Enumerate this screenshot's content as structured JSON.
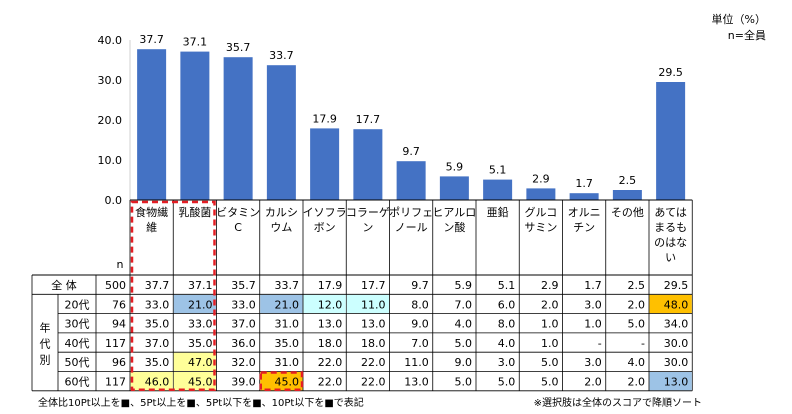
{
  "unit_label": "単位（%）",
  "n_label": "n=全員",
  "footer_left": "全体比10Pt以上を■、5Pt以上を■、5Pt以下を■、10Pt以下を■で表記",
  "footer_right": "※選択肢は全体のスコアで降順ソート",
  "table": {
    "n_header": "n",
    "group_label": "年代別",
    "total_row_label": "全 体"
  },
  "colors": {
    "bar": "#4472C4",
    "plus10": "#FFC000",
    "plus5": "#FFFF99",
    "minus5": "#CCFFFF",
    "minus10": "#9DC3E6",
    "highlight_box": "#E31E24"
  },
  "chart_data": {
    "type": "bar",
    "categories": [
      [
        "食物繊",
        "維"
      ],
      [
        "乳酸菌"
      ],
      [
        "ビタミン",
        "C"
      ],
      [
        "カルシ",
        "ウム"
      ],
      [
        "イソフラ",
        "ボン"
      ],
      [
        "コラーゲ",
        "ン"
      ],
      [
        "ポリフェ",
        "ノール"
      ],
      [
        "ヒアルロ",
        "ン酸"
      ],
      [
        "亜鉛"
      ],
      [
        "グルコ",
        "サミン"
      ],
      [
        "オルニ",
        "チン"
      ],
      [
        "その他"
      ],
      [
        "あては",
        "まるも",
        "のはな",
        "い"
      ]
    ],
    "values": [
      37.7,
      37.1,
      35.7,
      33.7,
      17.9,
      17.7,
      9.7,
      5.9,
      5.1,
      2.9,
      1.7,
      2.5,
      29.5
    ],
    "value_labels": [
      "37.7",
      "37.1",
      "35.7",
      "33.7",
      "17.9",
      "17.7",
      "9.7",
      "5.9",
      "5.1",
      "2.9",
      "1.7",
      "2.5",
      "29.5"
    ],
    "ylim": [
      0,
      40
    ],
    "yticks": [
      "0.0",
      "10.0",
      "20.0",
      "30.0",
      "40.0"
    ],
    "table_rows": [
      {
        "label": "全 体",
        "n": "500",
        "values": [
          "37.7",
          "37.1",
          "35.7",
          "33.7",
          "17.9",
          "17.7",
          "9.7",
          "5.9",
          "5.1",
          "2.9",
          "1.7",
          "2.5",
          "29.5"
        ]
      },
      {
        "label": "20代",
        "n": "76",
        "values": [
          "33.0",
          "21.0",
          "33.0",
          "21.0",
          "12.0",
          "11.0",
          "8.0",
          "7.0",
          "6.0",
          "2.0",
          "3.0",
          "2.0",
          "48.0"
        ]
      },
      {
        "label": "30代",
        "n": "94",
        "values": [
          "35.0",
          "33.0",
          "37.0",
          "31.0",
          "13.0",
          "13.0",
          "9.0",
          "4.0",
          "8.0",
          "1.0",
          "1.0",
          "5.0",
          "34.0"
        ]
      },
      {
        "label": "40代",
        "n": "117",
        "values": [
          "37.0",
          "35.0",
          "36.0",
          "35.0",
          "18.0",
          "18.0",
          "7.0",
          "5.0",
          "4.0",
          "1.0",
          "-",
          "-",
          "30.0"
        ]
      },
      {
        "label": "50代",
        "n": "96",
        "values": [
          "35.0",
          "47.0",
          "32.0",
          "31.0",
          "22.0",
          "22.0",
          "11.0",
          "9.0",
          "3.0",
          "5.0",
          "3.0",
          "4.0",
          "30.0"
        ]
      },
      {
        "label": "60代",
        "n": "117",
        "values": [
          "46.0",
          "45.0",
          "39.0",
          "45.0",
          "22.0",
          "22.0",
          "13.0",
          "5.0",
          "5.0",
          "5.0",
          "2.0",
          "2.0",
          "13.0"
        ]
      }
    ],
    "cell_highlights": [
      {
        "row": 1,
        "col": 1,
        "level": "minus10"
      },
      {
        "row": 1,
        "col": 3,
        "level": "minus10"
      },
      {
        "row": 1,
        "col": 4,
        "level": "minus5"
      },
      {
        "row": 1,
        "col": 5,
        "level": "minus5"
      },
      {
        "row": 1,
        "col": 12,
        "level": "plus10"
      },
      {
        "row": 4,
        "col": 1,
        "level": "plus5"
      },
      {
        "row": 5,
        "col": 0,
        "level": "plus5"
      },
      {
        "row": 5,
        "col": 1,
        "level": "plus5"
      },
      {
        "row": 5,
        "col": 3,
        "level": "plus10"
      },
      {
        "row": 5,
        "col": 12,
        "level": "minus10"
      }
    ]
  }
}
